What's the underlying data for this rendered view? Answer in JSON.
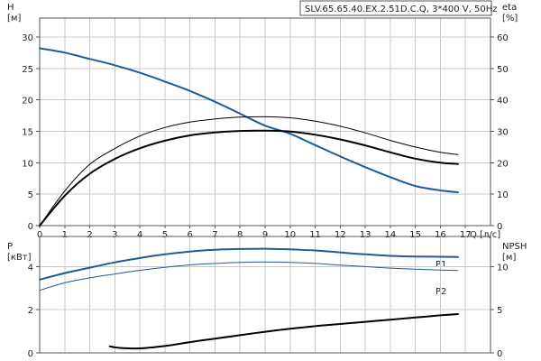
{
  "title": "SLV.65.65.40.EX.2.51D.C.Q, 3*400 V, 50Hz",
  "colors": {
    "blue": "#1f5a9a",
    "black": "#000000",
    "grid": "#c8c8c8"
  },
  "chart_data": [
    {
      "type": "line",
      "name": "top",
      "x_label": "Q [л/с]",
      "x_range": [
        0,
        18
      ],
      "x_ticks": [
        0,
        1,
        2,
        3,
        4,
        5,
        6,
        7,
        8,
        9,
        10,
        11,
        12,
        13,
        14,
        15,
        16,
        17
      ],
      "y_left": {
        "label_lines": [
          "H",
          "[м]"
        ],
        "range": [
          0,
          33
        ],
        "ticks": [
          0,
          5,
          10,
          15,
          20,
          25,
          30
        ]
      },
      "y_right": {
        "label_lines": [
          "eta",
          "[%]"
        ],
        "range": [
          0,
          66
        ],
        "ticks": [
          0,
          10,
          20,
          30,
          40,
          50,
          60
        ]
      },
      "grid": true,
      "series": [
        {
          "id": "H",
          "axis": "left",
          "color": "#1f5a9a",
          "width": 2,
          "x": [
            0,
            1,
            2,
            3,
            4,
            5,
            6,
            7,
            8,
            9,
            10,
            11,
            12,
            13,
            14,
            15,
            16,
            16.7
          ],
          "y": [
            28.2,
            27.5,
            26.5,
            25.5,
            24.3,
            22.9,
            21.4,
            19.7,
            17.8,
            15.9,
            14.6,
            12.8,
            11.0,
            9.3,
            7.7,
            6.3,
            5.6,
            5.3
          ]
        },
        {
          "id": "eta_thin",
          "axis": "right",
          "color": "#000000",
          "width": 1,
          "x": [
            0,
            1,
            2,
            3,
            4,
            5,
            6,
            7,
            8,
            9,
            10,
            11,
            12,
            13,
            14,
            15,
            16,
            16.7
          ],
          "y": [
            0,
            11,
            19.5,
            24.5,
            28.5,
            31.2,
            32.9,
            33.9,
            34.5,
            34.6,
            34.3,
            33.2,
            31.6,
            29.5,
            27.1,
            25,
            23.3,
            22.6
          ]
        },
        {
          "id": "eta_thick",
          "axis": "right",
          "color": "#000000",
          "width": 2,
          "x": [
            0,
            1,
            2,
            3,
            4,
            5,
            6,
            7,
            8,
            9,
            10,
            11,
            12,
            13,
            14,
            15,
            16,
            16.7
          ],
          "y": [
            0,
            9.5,
            16.5,
            21.2,
            24.6,
            27,
            28.7,
            29.6,
            30.1,
            30.2,
            29.9,
            28.9,
            27.4,
            25.5,
            23.3,
            21.3,
            20,
            19.6
          ]
        }
      ]
    },
    {
      "type": "line",
      "name": "bottom",
      "x_range": [
        0,
        18
      ],
      "y_left": {
        "label_lines": [
          "P",
          "[кВт]"
        ],
        "range": [
          0,
          5.4
        ],
        "ticks": [
          0,
          2,
          4
        ]
      },
      "y_right": {
        "label_lines": [
          "NPSH",
          "[м]"
        ],
        "range": [
          0,
          13.5
        ],
        "ticks": [
          0,
          5,
          10
        ]
      },
      "grid": true,
      "series": [
        {
          "id": "P1",
          "label": "P1",
          "axis": "left",
          "color": "#1f5a9a",
          "width": 2,
          "x": [
            0,
            1,
            2,
            3,
            4,
            5,
            6,
            7,
            8,
            9,
            10,
            11,
            12,
            13,
            14,
            15,
            16,
            16.7
          ],
          "y": [
            3.4,
            3.7,
            3.95,
            4.2,
            4.4,
            4.57,
            4.7,
            4.78,
            4.82,
            4.83,
            4.8,
            4.75,
            4.66,
            4.57,
            4.5,
            4.47,
            4.46,
            4.45
          ]
        },
        {
          "id": "P2",
          "label": "P2",
          "axis": "left",
          "color": "#1f5a9a",
          "width": 1,
          "x": [
            0,
            1,
            2,
            3,
            4,
            5,
            6,
            7,
            8,
            9,
            10,
            11,
            12,
            13,
            14,
            15,
            16,
            16.7
          ],
          "y": [
            2.9,
            3.25,
            3.48,
            3.66,
            3.83,
            3.97,
            4.08,
            4.15,
            4.2,
            4.22,
            4.2,
            4.15,
            4.07,
            4.0,
            3.93,
            3.88,
            3.84,
            3.82
          ]
        },
        {
          "id": "NPSH",
          "axis": "right",
          "color": "#000000",
          "width": 2,
          "x": [
            2.8,
            3.2,
            4,
            5,
            6,
            7,
            8,
            9,
            10,
            11,
            12,
            13,
            14,
            15,
            16,
            16.7
          ],
          "y": [
            0.75,
            0.58,
            0.52,
            0.8,
            1.25,
            1.65,
            2.05,
            2.45,
            2.8,
            3.1,
            3.35,
            3.6,
            3.85,
            4.1,
            4.35,
            4.5
          ]
        }
      ]
    }
  ]
}
